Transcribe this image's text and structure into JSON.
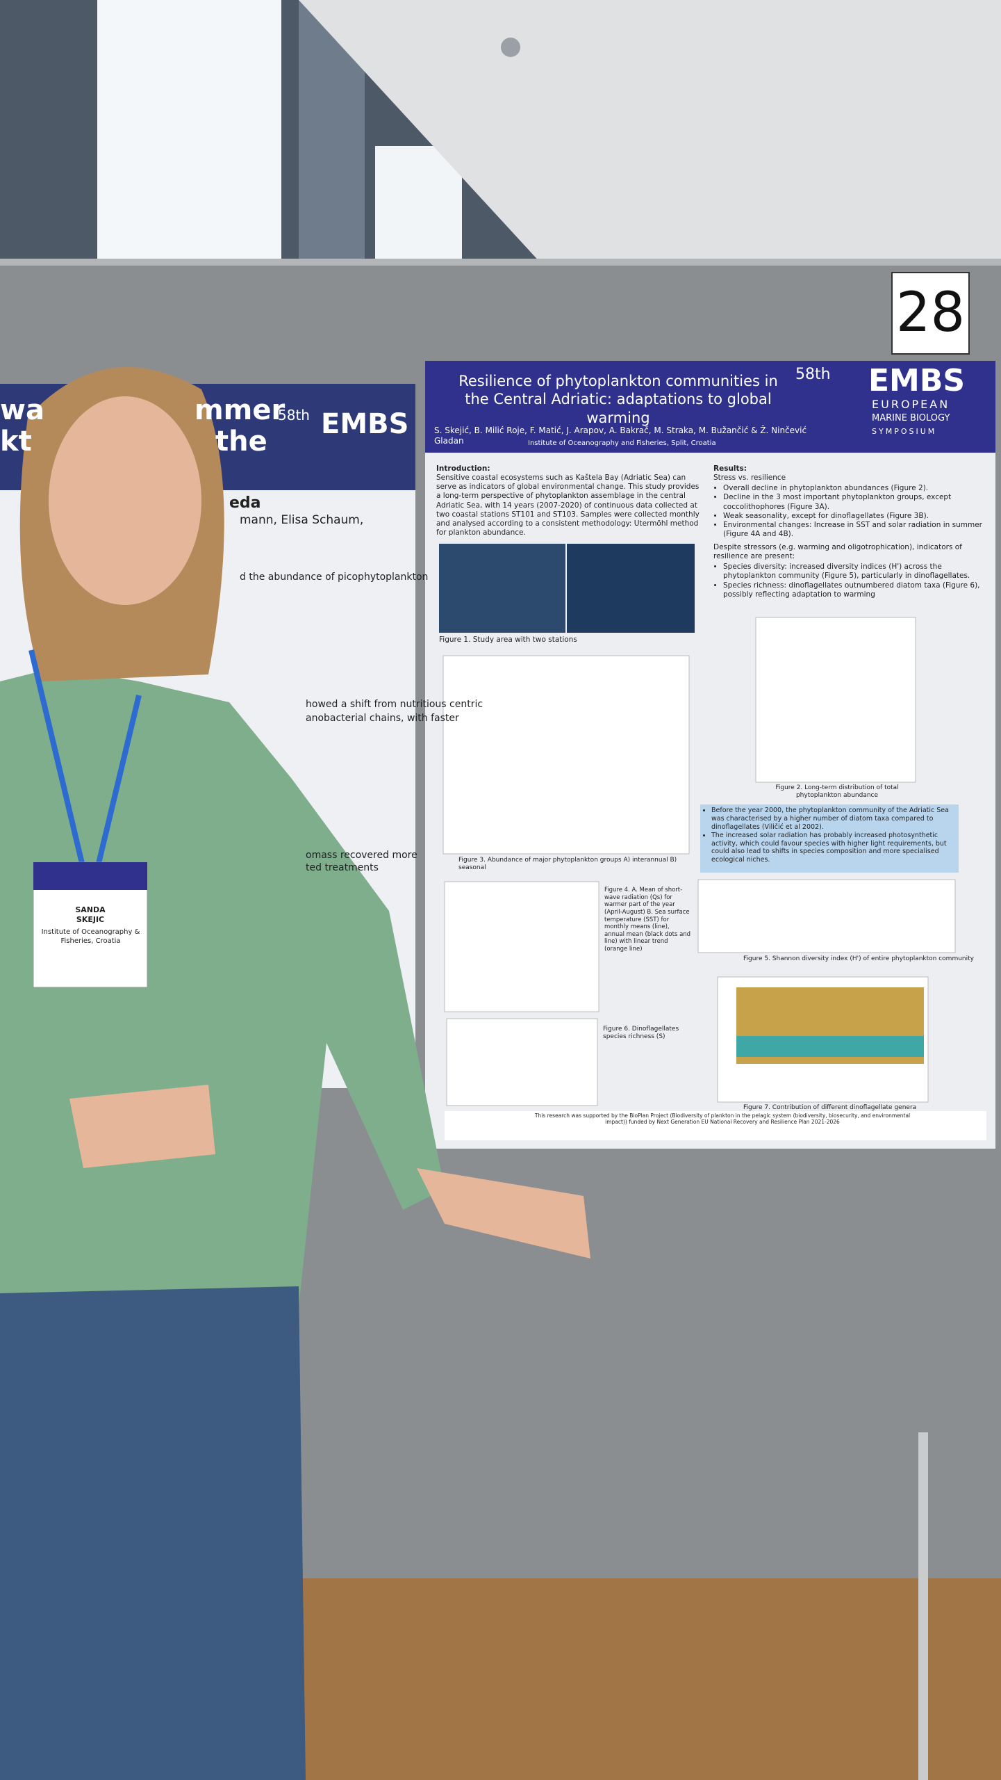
{
  "board_number": "28",
  "main_poster": {
    "title": "Resilience of phytoplankton communities in the Central Adriatic: adaptations to global warming",
    "authors": "S. Skejić, B. Milić Roje, F. Matić, J. Arapov, A. Bakrač, M. Straka, M. Bužančić & Ž. Ninčević Gladan",
    "affiliation": "Institute of Oceanography and Fisheries, Split, Croatia",
    "conference": {
      "edition": "58th",
      "name": "EMBS",
      "line1": "EUROPEAN",
      "line2": "MARINE BIOLOGY",
      "line3": "SYMPOSIUM"
    },
    "introduction": {
      "heading": "Introduction:",
      "text": "Sensitive coastal ecosystems such as Kaštela Bay (Adriatic Sea) can serve as indicators of global environmental change. This study provides a long-term perspective of phytoplankton assemblage in the central Adriatic Sea, with 14 years (2007-2020) of continuous data collected at two coastal stations ST101 and ST103. Samples were collected monthly and analysed according to a consistent methodology: Utermöhl method for plankton abundance."
    },
    "results": {
      "heading": "Results:",
      "subheading": "Stress vs. resilience",
      "stress_items": [
        "Overall decline in phytoplankton abundances (Figure 2).",
        "Decline in the 3 most important phytoplankton groups, except coccolithophores (Figure 3A).",
        "Weak seasonality, except for dinoflagellates (Figure 3B).",
        "Environmental changes: Increase in SST and solar radiation in summer (Figure 4A and 4B)."
      ],
      "resilience_intro": "Despite stressors (e.g. warming and oligotrophication), indicators of resilience are present:",
      "resilience_items": [
        "Species diversity: increased diversity indices (H') across the phytoplankton community (Figure 5), particularly in dinoflagellates.",
        "Species richness: dinoflagellates outnumbered diatom taxa (Figure 6), possibly reflecting adaptation to warming"
      ]
    },
    "conclusion_box": [
      "Before the year 2000, the phytoplankton community of the Adriatic Sea was characterised by a higher number of diatom taxa compared to dinoflagellates (Viličić et al 2002).",
      "The increased solar radiation has probably increased photosynthetic activity, which could favour species with higher light requirements, but could also lead to shifts in species composition and more specialised ecological niches."
    ],
    "captions": {
      "fig1": "Figure 1. Study area with two stations",
      "fig2": "Figure 2. Long-term distribution of total phytoplankton abundance",
      "fig3": "Figure 3. Abundance of major phytoplankton groups A) interannual B) seasonal",
      "fig4": "Figure 4. A. Mean of short-wave radiation (Qs) for warmer part of the year (April-August) B. Sea surface temperature (SST) for monthly means (line), annual mean (black dots and line) with linear trend (orange line)",
      "fig5": "Figure 5. Shannon diversity index (H') of entire phytoplankton community",
      "fig6": "Figure 6. Dinoflagellates species richness (S)",
      "fig7": "Figure 7. Contribution of different dinoflagellate genera"
    },
    "footer": "This research was supported by the BioPlan Project (Biodiversity of plankton in the pelagic system (biodiversity, biosecurity, and environmental impact)) funded by Next Generation EU National Recovery and Resilience Plan 2021-2026"
  },
  "left_poster": {
    "title_fragments": [
      "wa",
      "mmer",
      "kt",
      "the"
    ],
    "conference": "58th",
    "conference_name": "EMBS",
    "name_fragment": "eda",
    "authors_fragment": "mann, Elisa Schaum,",
    "lines": [
      "d the abundance of picophytoplankton",
      "howed a shift from nutritious centric",
      "anobacterial chains, with faster",
      "omass recovered more",
      "ted treatments"
    ]
  },
  "badge": {
    "name": "SANDA SKEJIC",
    "affiliation": "Institute of Oceanography & Fisheries, Croatia"
  }
}
